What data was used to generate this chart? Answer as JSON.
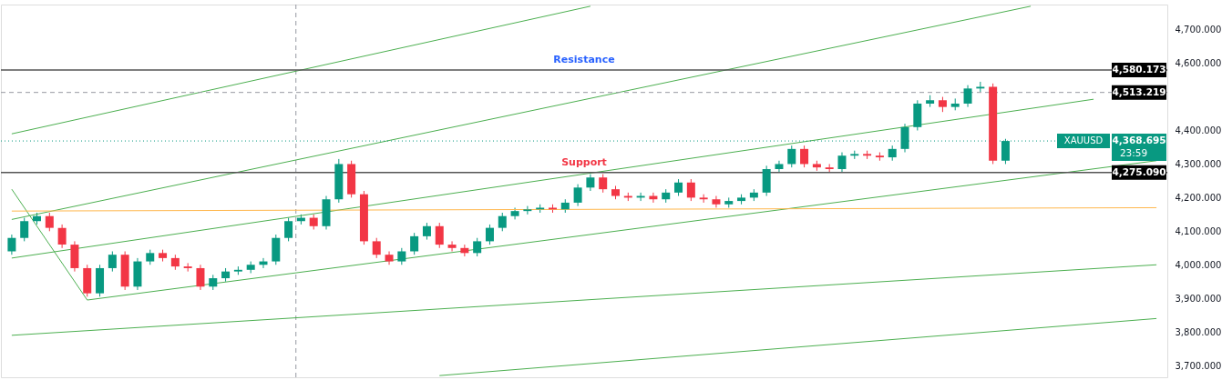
{
  "chart_data": {
    "type": "candlestick",
    "categories": [
      null,
      null,
      null,
      null,
      null,
      null,
      null,
      null,
      null,
      null,
      null,
      null,
      null,
      null,
      null,
      null,
      null,
      null,
      null,
      null,
      null,
      null,
      null,
      null,
      null,
      null,
      null,
      null,
      null,
      null,
      null,
      null,
      null,
      null,
      null,
      null,
      null,
      null,
      null,
      null,
      null,
      null,
      null,
      null,
      null,
      null,
      null,
      null,
      null,
      null,
      null,
      null,
      null,
      null,
      null,
      null,
      null,
      null,
      null,
      null,
      null,
      null,
      null,
      null,
      null,
      null,
      null,
      null,
      null,
      null,
      null,
      null,
      null,
      null,
      null,
      null,
      null,
      null,
      null,
      null,
      null,
      null,
      null,
      null,
      null,
      null,
      null,
      null,
      null,
      null,
      null,
      null
    ],
    "ohlc": [
      [
        4040,
        4090,
        4030,
        4080
      ],
      [
        4080,
        4140,
        4070,
        4130
      ],
      [
        4130,
        4155,
        4120,
        4145
      ],
      [
        4145,
        4155,
        4100,
        4110
      ],
      [
        4110,
        4120,
        4050,
        4060
      ],
      [
        4060,
        4070,
        3980,
        3990
      ],
      [
        3990,
        4000,
        3905,
        3915
      ],
      [
        3915,
        4000,
        3905,
        3990
      ],
      [
        3990,
        4040,
        3980,
        4030
      ],
      [
        4030,
        4040,
        3925,
        3935
      ],
      [
        3935,
        4020,
        3925,
        4010
      ],
      [
        4010,
        4045,
        4000,
        4035
      ],
      [
        4035,
        4045,
        4010,
        4020
      ],
      [
        4020,
        4030,
        3985,
        3995
      ],
      [
        3995,
        4005,
        3980,
        3990
      ],
      [
        3990,
        4000,
        3925,
        3935
      ],
      [
        3935,
        3970,
        3925,
        3960
      ],
      [
        3960,
        3990,
        3950,
        3980
      ],
      [
        3980,
        3995,
        3970,
        3985
      ],
      [
        3985,
        4010,
        3975,
        4000
      ],
      [
        4000,
        4020,
        3990,
        4010
      ],
      [
        4010,
        4090,
        4000,
        4080
      ],
      [
        4080,
        4140,
        4070,
        4130
      ],
      [
        4130,
        4150,
        4120,
        4140
      ],
      [
        4140,
        4150,
        4105,
        4115
      ],
      [
        4115,
        4205,
        4105,
        4195
      ],
      [
        4195,
        4315,
        4185,
        4300
      ],
      [
        4300,
        4310,
        4200,
        4210
      ],
      [
        4210,
        4220,
        4060,
        4070
      ],
      [
        4070,
        4080,
        4020,
        4030
      ],
      [
        4030,
        4040,
        4000,
        4010
      ],
      [
        4010,
        4050,
        4000,
        4040
      ],
      [
        4040,
        4095,
        4030,
        4085
      ],
      [
        4085,
        4125,
        4075,
        4115
      ],
      [
        4115,
        4125,
        4050,
        4060
      ],
      [
        4060,
        4070,
        4040,
        4050
      ],
      [
        4050,
        4060,
        4025,
        4035
      ],
      [
        4035,
        4080,
        4025,
        4070
      ],
      [
        4070,
        4120,
        4060,
        4110
      ],
      [
        4110,
        4155,
        4100,
        4145
      ],
      [
        4145,
        4170,
        4135,
        4160
      ],
      [
        4160,
        4175,
        4150,
        4165
      ],
      [
        4165,
        4180,
        4155,
        4170
      ],
      [
        4170,
        4180,
        4155,
        4165
      ],
      [
        4165,
        4195,
        4155,
        4185
      ],
      [
        4185,
        4240,
        4175,
        4230
      ],
      [
        4230,
        4270,
        4220,
        4260
      ],
      [
        4260,
        4270,
        4215,
        4225
      ],
      [
        4225,
        4235,
        4195,
        4205
      ],
      [
        4205,
        4215,
        4190,
        4200
      ],
      [
        4200,
        4215,
        4190,
        4205
      ],
      [
        4205,
        4215,
        4185,
        4195
      ],
      [
        4195,
        4225,
        4185,
        4215
      ],
      [
        4215,
        4255,
        4205,
        4245
      ],
      [
        4245,
        4255,
        4190,
        4200
      ],
      [
        4200,
        4210,
        4185,
        4195
      ],
      [
        4195,
        4205,
        4170,
        4180
      ],
      [
        4180,
        4200,
        4170,
        4190
      ],
      [
        4190,
        4210,
        4180,
        4200
      ],
      [
        4200,
        4225,
        4190,
        4215
      ],
      [
        4215,
        4295,
        4205,
        4285
      ],
      [
        4285,
        4310,
        4275,
        4300
      ],
      [
        4300,
        4355,
        4290,
        4345
      ],
      [
        4345,
        4355,
        4290,
        4300
      ],
      [
        4300,
        4310,
        4280,
        4290
      ],
      [
        4290,
        4300,
        4275,
        4285
      ],
      [
        4285,
        4335,
        4275,
        4325
      ],
      [
        4325,
        4340,
        4315,
        4330
      ],
      [
        4330,
        4340,
        4315,
        4325
      ],
      [
        4325,
        4335,
        4310,
        4320
      ],
      [
        4320,
        4355,
        4310,
        4345
      ],
      [
        4345,
        4420,
        4335,
        4410
      ],
      [
        4410,
        4490,
        4400,
        4480
      ],
      [
        4480,
        4505,
        4470,
        4490
      ],
      [
        4490,
        4500,
        4455,
        4470
      ],
      [
        4470,
        4495,
        4460,
        4480
      ],
      [
        4480,
        4535,
        4470,
        4525
      ],
      [
        4525,
        4545,
        4515,
        4530
      ],
      [
        4530,
        4540,
        4300,
        4310
      ],
      [
        4310,
        4375,
        4300,
        4368.695
      ],
      null,
      null,
      null,
      null,
      null,
      null,
      null,
      null,
      null,
      null,
      null,
      null
    ],
    "colors": [
      "#089981",
      "#089981",
      "#089981",
      "#f23645",
      "#f23645",
      "#f23645",
      "#f23645",
      "#089981",
      "#089981",
      "#f23645",
      "#089981",
      "#089981",
      "#f23645",
      "#f23645",
      "#f23645",
      "#f23645",
      "#089981",
      "#089981",
      "#089981",
      "#089981",
      "#089981",
      "#089981",
      "#089981",
      "#089981",
      "#f23645",
      "#089981",
      "#089981",
      "#f23645",
      "#f23645",
      "#f23645",
      "#f23645",
      "#089981",
      "#089981",
      "#089981",
      "#f23645",
      "#f23645",
      "#f23645",
      "#089981",
      "#089981",
      "#089981",
      "#089981",
      "#089981",
      "#089981",
      "#f23645",
      "#089981",
      "#089981",
      "#089981",
      "#f23645",
      "#f23645",
      "#f23645",
      "#089981",
      "#f23645",
      "#089981",
      "#089981",
      "#f23645",
      "#f23645",
      "#f23645",
      "#089981",
      "#089981",
      "#089981",
      "#089981",
      "#089981",
      "#089981",
      "#f23645",
      "#f23645",
      "#f23645",
      "#089981",
      "#089981",
      "#f23645",
      "#f23645",
      "#089981",
      "#089981",
      "#089981",
      "#089981",
      "#f23645",
      "#089981",
      "#089981",
      "#089981",
      "#f23645",
      "#089981",
      null,
      null,
      null,
      null,
      null,
      null,
      null,
      null,
      null,
      null,
      null,
      null
    ],
    "series": [
      {
        "type": "line",
        "color": "#4caf50",
        "values": [
          4390,
          null,
          null,
          null,
          null,
          null,
          null,
          null,
          null,
          null,
          null,
          null,
          null,
          null,
          null,
          null,
          null,
          null,
          null,
          null,
          null,
          null,
          null,
          null,
          null,
          null,
          null,
          null,
          null,
          null,
          null,
          null,
          null,
          null,
          null,
          null,
          null,
          null,
          null,
          null,
          null,
          null,
          null,
          null,
          null,
          null,
          4770,
          null,
          null,
          null,
          null,
          null,
          null,
          null,
          null,
          null,
          null,
          null,
          null,
          null,
          null,
          null,
          null,
          null,
          null,
          null,
          null,
          null,
          null,
          null,
          null,
          null,
          null,
          null,
          null,
          null,
          null,
          null,
          null,
          null,
          null,
          null,
          null,
          null,
          null,
          null,
          null,
          null,
          null,
          null,
          null,
          null
        ]
      },
      {
        "type": "line",
        "color": "#4caf50",
        "values": [
          4135,
          null,
          null,
          null,
          null,
          null,
          null,
          null,
          null,
          null,
          null,
          null,
          null,
          null,
          null,
          null,
          null,
          null,
          null,
          null,
          null,
          null,
          null,
          null,
          null,
          null,
          null,
          null,
          null,
          null,
          null,
          null,
          null,
          null,
          null,
          null,
          null,
          null,
          null,
          null,
          null,
          null,
          null,
          null,
          null,
          null,
          null,
          null,
          null,
          null,
          null,
          null,
          null,
          null,
          null,
          null,
          null,
          null,
          null,
          null,
          null,
          null,
          null,
          null,
          null,
          null,
          null,
          null,
          null,
          null,
          null,
          null,
          null,
          null,
          null,
          null,
          null,
          null,
          null,
          null,
          null,
          4770,
          null,
          null,
          null,
          null,
          null,
          null,
          null,
          null,
          null,
          null
        ]
      },
      {
        "type": "line",
        "color": "#4caf50",
        "values": [
          4020,
          null,
          null,
          null,
          null,
          null,
          null,
          null,
          null,
          null,
          null,
          null,
          null,
          null,
          null,
          null,
          null,
          null,
          null,
          null,
          null,
          null,
          null,
          null,
          null,
          null,
          null,
          null,
          null,
          null,
          null,
          null,
          null,
          null,
          null,
          null,
          null,
          null,
          null,
          null,
          null,
          null,
          null,
          null,
          null,
          null,
          null,
          null,
          null,
          null,
          null,
          null,
          null,
          null,
          null,
          null,
          null,
          null,
          null,
          null,
          null,
          null,
          null,
          null,
          null,
          null,
          null,
          null,
          null,
          null,
          null,
          null,
          null,
          null,
          null,
          null,
          null,
          null,
          null,
          null,
          null,
          null,
          null,
          null,
          null,
          null,
          4493,
          null,
          null,
          null,
          null,
          null
        ]
      },
      {
        "type": "line",
        "color": "#4caf50",
        "values": [
          4225,
          null,
          null,
          null,
          null,
          null,
          3895,
          null,
          null,
          null,
          null,
          null,
          null,
          null,
          null,
          null,
          null,
          null,
          null,
          null,
          null,
          null,
          null,
          null,
          null,
          null,
          null,
          null,
          null,
          null,
          null,
          null,
          null,
          null,
          null,
          null,
          null,
          null,
          null,
          null,
          null,
          null,
          null,
          null,
          null,
          null,
          null,
          null,
          null,
          null,
          null,
          null,
          null,
          null,
          null,
          null,
          null,
          null,
          null,
          null,
          null,
          null,
          null,
          null,
          null,
          null,
          null,
          null,
          null,
          null,
          null,
          null,
          null,
          null,
          null,
          null,
          null,
          null,
          null,
          null,
          null,
          null,
          null,
          null,
          null,
          null,
          null,
          null,
          null,
          null,
          null,
          null
        ]
      },
      {
        "type": "line",
        "color": "#4caf50",
        "values": [
          null,
          null,
          null,
          null,
          null,
          null,
          3895,
          null,
          null,
          null,
          null,
          null,
          null,
          null,
          null,
          null,
          null,
          null,
          null,
          null,
          null,
          null,
          null,
          null,
          null,
          null,
          null,
          null,
          null,
          null,
          null,
          null,
          null,
          null,
          null,
          null,
          null,
          null,
          null,
          null,
          null,
          null,
          null,
          null,
          null,
          null,
          null,
          null,
          null,
          null,
          null,
          null,
          null,
          null,
          null,
          null,
          null,
          null,
          null,
          null,
          null,
          null,
          null,
          null,
          null,
          null,
          null,
          null,
          null,
          null,
          null,
          null,
          null,
          null,
          null,
          null,
          null,
          null,
          null,
          null,
          null,
          null,
          null,
          null,
          null,
          null,
          null,
          null,
          null,
          null,
          null,
          4310
        ]
      },
      {
        "type": "line",
        "color": "#4caf50",
        "values": [
          3790,
          null,
          null,
          null,
          null,
          null,
          null,
          null,
          null,
          null,
          null,
          null,
          null,
          null,
          null,
          null,
          null,
          null,
          null,
          null,
          null,
          null,
          null,
          null,
          null,
          null,
          null,
          null,
          null,
          null,
          null,
          null,
          null,
          null,
          null,
          null,
          null,
          null,
          null,
          null,
          null,
          null,
          null,
          null,
          null,
          null,
          null,
          null,
          null,
          null,
          null,
          null,
          null,
          null,
          null,
          null,
          null,
          null,
          null,
          null,
          null,
          null,
          null,
          null,
          null,
          null,
          null,
          null,
          null,
          null,
          null,
          null,
          null,
          null,
          null,
          null,
          null,
          null,
          null,
          null,
          null,
          null,
          null,
          null,
          null,
          null,
          null,
          null,
          null,
          null,
          null,
          4000
        ]
      },
      {
        "type": "line",
        "color": "#4caf50",
        "values": [
          null,
          null,
          null,
          null,
          null,
          null,
          null,
          null,
          null,
          null,
          null,
          null,
          null,
          null,
          null,
          null,
          null,
          null,
          null,
          null,
          null,
          null,
          null,
          null,
          null,
          null,
          null,
          null,
          null,
          null,
          null,
          null,
          null,
          null,
          3670,
          null,
          null,
          null,
          null,
          null,
          null,
          null,
          null,
          null,
          null,
          null,
          null,
          null,
          null,
          null,
          null,
          null,
          null,
          null,
          null,
          null,
          null,
          null,
          null,
          null,
          null,
          null,
          null,
          null,
          null,
          null,
          null,
          null,
          null,
          null,
          null,
          null,
          null,
          null,
          null,
          null,
          null,
          null,
          null,
          null,
          null,
          null,
          null,
          null,
          null,
          null,
          null,
          null,
          null,
          null,
          null,
          3840
        ]
      },
      {
        "type": "line",
        "color": "#ffb74d",
        "values": [
          4160,
          null,
          null,
          null,
          null,
          null,
          null,
          null,
          null,
          null,
          null,
          null,
          null,
          null,
          null,
          null,
          null,
          null,
          null,
          null,
          null,
          null,
          null,
          null,
          null,
          null,
          null,
          null,
          null,
          null,
          null,
          null,
          null,
          null,
          null,
          null,
          null,
          null,
          null,
          null,
          null,
          null,
          null,
          null,
          null,
          null,
          null,
          null,
          null,
          null,
          null,
          null,
          null,
          null,
          null,
          null,
          null,
          null,
          null,
          null,
          null,
          null,
          null,
          null,
          null,
          null,
          null,
          null,
          null,
          null,
          null,
          null,
          null,
          null,
          null,
          null,
          null,
          null,
          null,
          null,
          null,
          null,
          null,
          null,
          null,
          null,
          null,
          null,
          null,
          null,
          null,
          4170
        ]
      }
    ],
    "ref_lines": [
      {
        "axis": "y",
        "value": 4580.173,
        "label": "Resistance",
        "color": "#555555",
        "line_style": "solid"
      },
      {
        "axis": "y",
        "value": 4513.219,
        "color": "#9598a1",
        "line_style": "dashed"
      },
      {
        "axis": "y",
        "value": 4368.695,
        "color": "#089981",
        "line_style": "dotted"
      },
      {
        "axis": "y",
        "value": 4275.09,
        "label": "Support",
        "color": "#555555",
        "line_style": "solid"
      }
    ],
    "annotations": [
      "4,580.173",
      "4,513.219",
      "4,368.695",
      "4,275.090",
      "XAUUSD",
      "23:59"
    ],
    "ylim": [
      3665,
      4775
    ],
    "yticks": [
      {
        "value": 3700,
        "label": "3,700.000"
      },
      {
        "value": 3800,
        "label": "3,800.000"
      },
      {
        "value": 3900,
        "label": "3,900.000"
      },
      {
        "value": 4000,
        "label": "4,000.000"
      },
      {
        "value": 4100,
        "label": "4,100.000"
      },
      {
        "value": 4200,
        "label": "4,200.000"
      },
      {
        "value": 4300,
        "label": "4,300.000"
      },
      {
        "value": 4400,
        "label": "4,400.000"
      },
      {
        "value": 4600,
        "label": "4,600.000"
      },
      {
        "value": 4700,
        "label": "4,700.000"
      }
    ],
    "tick_labels": "y",
    "grid": false
  }
}
